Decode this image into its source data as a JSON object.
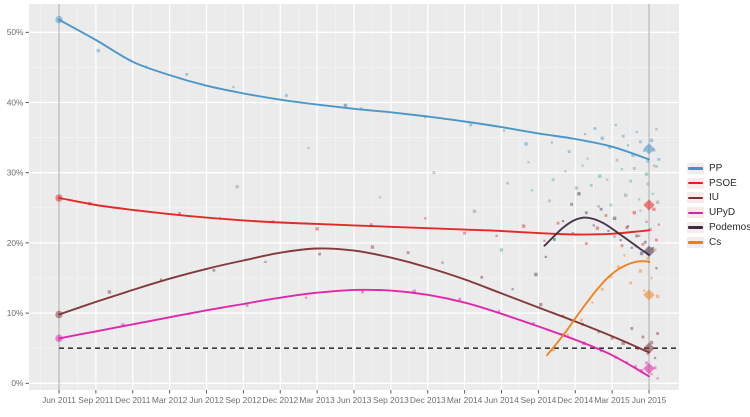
{
  "chart_data": {
    "type": "line+scatter",
    "title": "",
    "xlabel": "",
    "ylabel": "",
    "background": "#ebebeb",
    "grid": {
      "major_color": "#ffffff",
      "minor_color": "#f4f4f4"
    },
    "x_axis": {
      "tick_months": [
        0,
        3,
        6,
        9,
        12,
        15,
        18,
        21,
        24,
        27,
        30,
        33,
        36,
        39,
        42,
        45,
        48
      ],
      "tick_labels": [
        "Jun 2011",
        "Sep 2011",
        "Dec 2011",
        "Mar 2012",
        "Jun 2012",
        "Sep 2012",
        "Dec 2012",
        "Mar 2013",
        "Jun 2013",
        "Sep 2013",
        "Dec 2013",
        "Mar 2014",
        "Jun 2014",
        "Sep 2014",
        "Dec 2014",
        "Mar 2015",
        "Jun 2015"
      ]
    },
    "y_axis": {
      "tick_values": [
        0,
        10,
        20,
        30,
        40,
        50
      ],
      "tick_labels": [
        "0%",
        "10%",
        "20%",
        "30%",
        "40%",
        "50%"
      ],
      "range": [
        -1,
        54
      ]
    },
    "threshold_line": {
      "value": 5,
      "style": "dashed",
      "color": "#3a3a3a"
    },
    "reference_vlines": {
      "months": [
        0,
        48
      ],
      "color": "#a8a8a8"
    },
    "legend_position": "right",
    "series": [
      {
        "name": "PP",
        "color": "#4292c6",
        "x": [
          0,
          3,
          6,
          9,
          12,
          15,
          18,
          21,
          24,
          27,
          30,
          33,
          36,
          39,
          42,
          45,
          48
        ],
        "y": [
          51.8,
          48.9,
          45.8,
          43.9,
          42.4,
          41.3,
          40.4,
          39.7,
          39.1,
          38.6,
          38.0,
          37.3,
          36.5,
          35.6,
          34.8,
          33.7,
          31.9
        ],
        "start_marker": 51.8,
        "end_marker": 33.4
      },
      {
        "name": "PSOE",
        "color": "#e3201e",
        "x": [
          0,
          3,
          6,
          9,
          12,
          15,
          18,
          21,
          24,
          27,
          30,
          33,
          36,
          39,
          42,
          45,
          48
        ],
        "y": [
          26.4,
          25.4,
          24.7,
          24.1,
          23.6,
          23.2,
          22.9,
          22.7,
          22.5,
          22.3,
          22.1,
          21.9,
          21.7,
          21.4,
          21.2,
          21.3,
          21.8
        ],
        "start_marker": 26.4,
        "end_marker": 25.4
      },
      {
        "name": "IU",
        "color": "#7e2f33",
        "x": [
          0,
          3,
          6,
          9,
          12,
          15,
          18,
          21,
          24,
          27,
          30,
          33,
          36,
          39,
          42,
          45,
          48
        ],
        "y": [
          9.8,
          11.6,
          13.3,
          14.9,
          16.3,
          17.5,
          18.6,
          19.2,
          18.9,
          17.9,
          16.5,
          14.8,
          12.8,
          10.8,
          8.8,
          6.7,
          4.4
        ],
        "start_marker": 9.8,
        "end_marker": 5.0
      },
      {
        "name": "UPyD",
        "color": "#dd1fa8",
        "x": [
          0,
          3,
          6,
          9,
          12,
          15,
          18,
          21,
          24,
          27,
          30,
          33,
          36,
          39,
          42,
          45,
          48
        ],
        "y": [
          6.4,
          7.4,
          8.4,
          9.4,
          10.4,
          11.3,
          12.2,
          12.9,
          13.3,
          13.2,
          12.6,
          11.5,
          9.9,
          8.1,
          6.2,
          4.0,
          1.0
        ],
        "start_marker": 6.4,
        "end_marker": 2.1
      },
      {
        "name": "Podemos",
        "color": "#3f2a44",
        "x": [
          39.5,
          40.3,
          41.1,
          41.9,
          42.7,
          43.5,
          44.3,
          45.1,
          45.9,
          46.7,
          47.4,
          48
        ],
        "y": [
          19.6,
          21.0,
          22.3,
          23.2,
          23.6,
          23.4,
          22.8,
          21.9,
          20.9,
          19.9,
          19.0,
          18.3
        ],
        "start_marker": null,
        "end_marker": 18.8
      },
      {
        "name": "Cs",
        "color": "#ee7e18",
        "x": [
          39.7,
          40.5,
          41.3,
          42.1,
          42.9,
          43.7,
          44.5,
          45.3,
          46.1,
          46.9,
          47.6,
          48
        ],
        "y": [
          4.0,
          5.7,
          7.5,
          9.5,
          11.4,
          13.2,
          14.8,
          16.0,
          16.8,
          17.3,
          17.4,
          17.3
        ],
        "start_marker": null,
        "end_marker": 12.6
      }
    ],
    "extra_point_colors": {
      "gray": "#8f8f8f",
      "teal": "#45ada0"
    },
    "points": {
      "PP": [
        [
          3.2,
          47.4
        ],
        [
          7.1,
          45.1
        ],
        [
          10.4,
          44.0
        ],
        [
          14.2,
          42.2
        ],
        [
          18.5,
          41.0
        ],
        [
          23.3,
          39.6
        ],
        [
          24.6,
          39.1
        ],
        [
          29.8,
          37.9
        ],
        [
          33.5,
          36.8
        ],
        [
          36.2,
          36.0
        ],
        [
          38.0,
          34.1
        ],
        [
          40.1,
          34.3
        ],
        [
          41.5,
          33.0
        ],
        [
          42.8,
          35.5
        ],
        [
          43.6,
          36.3
        ],
        [
          44.2,
          34.9
        ],
        [
          44.8,
          33.6
        ],
        [
          45.3,
          36.8
        ],
        [
          45.9,
          35.2
        ],
        [
          46.3,
          33.9
        ],
        [
          46.7,
          32.5
        ],
        [
          47.0,
          35.8
        ],
        [
          47.3,
          34.4
        ],
        [
          47.6,
          33.1
        ],
        [
          47.9,
          31.6
        ],
        [
          48.2,
          34.6
        ],
        [
          48.4,
          33.2
        ],
        [
          48.6,
          36.2
        ],
        [
          48.8,
          31.9
        ]
      ],
      "PSOE": [
        [
          2.5,
          25.6
        ],
        [
          6.3,
          24.6
        ],
        [
          9.8,
          24.2
        ],
        [
          13.1,
          23.5
        ],
        [
          17.4,
          23.0
        ],
        [
          21.0,
          22.0
        ],
        [
          25.4,
          22.6
        ],
        [
          29.8,
          23.5
        ],
        [
          33.0,
          21.4
        ],
        [
          35.6,
          21.0
        ],
        [
          37.8,
          22.4
        ],
        [
          39.5,
          20.3
        ],
        [
          40.6,
          22.8
        ],
        [
          41.8,
          21.4
        ],
        [
          42.9,
          19.9
        ],
        [
          43.8,
          22.1
        ],
        [
          44.5,
          23.9
        ],
        [
          45.2,
          20.9
        ],
        [
          45.8,
          19.6
        ],
        [
          46.3,
          22.4
        ],
        [
          46.8,
          24.3
        ],
        [
          47.2,
          21.0
        ],
        [
          47.5,
          19.8
        ],
        [
          47.8,
          23.0
        ],
        [
          48.1,
          21.9
        ],
        [
          48.4,
          24.8
        ],
        [
          48.6,
          20.4
        ],
        [
          48.8,
          22.6
        ]
      ],
      "IU": [
        [
          4.1,
          13.0
        ],
        [
          8.3,
          14.8
        ],
        [
          12.6,
          16.1
        ],
        [
          16.8,
          17.3
        ],
        [
          21.2,
          18.4
        ],
        [
          25.5,
          19.4
        ],
        [
          28.4,
          18.6
        ],
        [
          31.2,
          17.2
        ],
        [
          34.4,
          15.1
        ],
        [
          36.9,
          13.4
        ],
        [
          39.2,
          11.2
        ],
        [
          41.0,
          9.6
        ],
        [
          42.6,
          8.4
        ],
        [
          43.9,
          7.3
        ],
        [
          45.0,
          6.4
        ],
        [
          45.9,
          5.7
        ],
        [
          46.6,
          7.8
        ],
        [
          47.1,
          4.9
        ],
        [
          47.5,
          6.6
        ],
        [
          47.9,
          4.2
        ],
        [
          48.2,
          5.8
        ],
        [
          48.5,
          3.6
        ],
        [
          48.7,
          7.1
        ]
      ],
      "UPyD": [
        [
          5.2,
          8.3
        ],
        [
          10.6,
          9.9
        ],
        [
          15.3,
          11.1
        ],
        [
          20.1,
          12.2
        ],
        [
          24.7,
          13.0
        ],
        [
          28.9,
          13.1
        ],
        [
          32.6,
          12.0
        ],
        [
          35.8,
          10.3
        ],
        [
          38.6,
          8.5
        ],
        [
          40.9,
          7.0
        ],
        [
          42.7,
          5.7
        ],
        [
          44.1,
          4.6
        ],
        [
          45.3,
          3.7
        ],
        [
          46.2,
          3.0
        ],
        [
          46.9,
          2.4
        ],
        [
          47.4,
          1.8
        ],
        [
          47.8,
          2.9
        ],
        [
          48.2,
          1.3
        ],
        [
          48.5,
          2.2
        ],
        [
          48.7,
          0.7
        ]
      ],
      "Podemos": [
        [
          38.8,
          15.5
        ],
        [
          39.6,
          18.0
        ],
        [
          40.3,
          20.5
        ],
        [
          41.0,
          23.1
        ],
        [
          41.7,
          25.5
        ],
        [
          42.3,
          27.0
        ],
        [
          42.9,
          24.3
        ],
        [
          43.5,
          22.5
        ],
        [
          44.1,
          24.8
        ],
        [
          44.7,
          21.7
        ],
        [
          45.2,
          23.5
        ],
        [
          45.7,
          20.4
        ],
        [
          46.2,
          22.2
        ],
        [
          46.6,
          19.3
        ],
        [
          47.0,
          21.0
        ],
        [
          47.4,
          18.5
        ],
        [
          47.7,
          20.1
        ],
        [
          48.0,
          17.3
        ],
        [
          48.3,
          19.2
        ],
        [
          48.6,
          16.4
        ]
      ],
      "Cs": [
        [
          40.2,
          4.8
        ],
        [
          41.4,
          6.9
        ],
        [
          42.5,
          9.0
        ],
        [
          43.4,
          11.5
        ],
        [
          44.2,
          13.4
        ],
        [
          44.9,
          15.2
        ],
        [
          45.5,
          16.6
        ],
        [
          46.0,
          18.2
        ],
        [
          46.5,
          14.3
        ],
        [
          46.9,
          19.5
        ],
        [
          47.3,
          16.0
        ],
        [
          47.6,
          13.2
        ],
        [
          47.9,
          17.8
        ],
        [
          48.2,
          15.0
        ],
        [
          48.5,
          19.0
        ],
        [
          48.7,
          12.4
        ]
      ],
      "gray": [
        [
          14.5,
          28.0
        ],
        [
          20.3,
          33.5
        ],
        [
          23.3,
          39.6
        ],
        [
          26.1,
          26.5
        ],
        [
          30.5,
          30.0
        ],
        [
          33.8,
          24.5
        ],
        [
          36.5,
          28.5
        ],
        [
          38.2,
          31.5
        ],
        [
          39.9,
          26.0
        ],
        [
          41.2,
          30.2
        ],
        [
          42.1,
          27.8
        ],
        [
          43.0,
          32.0
        ],
        [
          43.9,
          25.2
        ],
        [
          44.6,
          29.0
        ],
        [
          45.4,
          31.8
        ],
        [
          46.1,
          26.8
        ],
        [
          46.8,
          30.6
        ],
        [
          47.3,
          24.6
        ],
        [
          47.9,
          28.4
        ],
        [
          48.4,
          31.0
        ],
        [
          48.7,
          25.8
        ]
      ],
      "teal": [
        [
          36.0,
          19.0
        ],
        [
          38.5,
          27.5
        ],
        [
          40.2,
          29.0
        ],
        [
          42.6,
          31.0
        ],
        [
          43.3,
          28.2
        ],
        [
          44.0,
          29.5
        ],
        [
          44.9,
          25.4
        ],
        [
          45.8,
          30.5
        ],
        [
          46.5,
          28.8
        ],
        [
          47.2,
          26.2
        ],
        [
          47.8,
          29.8
        ],
        [
          48.3,
          27.0
        ],
        [
          48.6,
          30.9
        ]
      ]
    }
  }
}
